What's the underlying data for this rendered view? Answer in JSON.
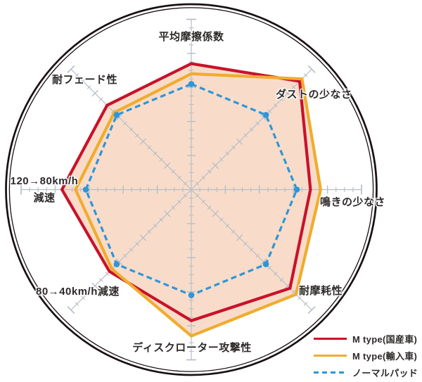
{
  "chart_data": {
    "type": "radar",
    "axes": [
      {
        "label": "平均摩擦係数"
      },
      {
        "label": "ダストの少なさ"
      },
      {
        "label": "鳴きの少なさ"
      },
      {
        "label": "耐摩耗性"
      },
      {
        "label": "ディスクローター攻撃性"
      },
      {
        "label": "80→40km/h減速"
      },
      {
        "label": "120→80km/h減速",
        "lines": [
          "120→80km/h",
          "減速"
        ]
      },
      {
        "label": "耐フェード性"
      }
    ],
    "scale": {
      "min": 0,
      "max": 5,
      "major_step": 1,
      "minor_step": 0.25
    },
    "series": [
      {
        "name": "M type(国産車)",
        "color": "#c9122a",
        "style": "solid",
        "values": [
          3.7,
          4.5,
          3.5,
          4.1,
          3.85,
          3.4,
          3.8,
          3.5
        ]
      },
      {
        "name": "M type(輸入車)",
        "color": "#f0ac2e",
        "style": "solid",
        "values": [
          3.4,
          4.6,
          3.8,
          4.35,
          4.3,
          3.3,
          3.4,
          3.2
        ]
      },
      {
        "name": "ノーマルパッド",
        "color": "#2e96d8",
        "style": "dashed",
        "values": [
          3.1,
          3.1,
          3.1,
          3.1,
          3.1,
          3.1,
          3.1,
          3.1
        ]
      }
    ],
    "styles": {
      "area_fill": "#f8dcc9",
      "tick_color": "#b7bec8",
      "ring_color": "#181012",
      "label_color": "#2e2a2a"
    },
    "legend_position": "bottom-right",
    "grid": "ticks-on-axes",
    "axis_order": "clockwise-from-top"
  }
}
